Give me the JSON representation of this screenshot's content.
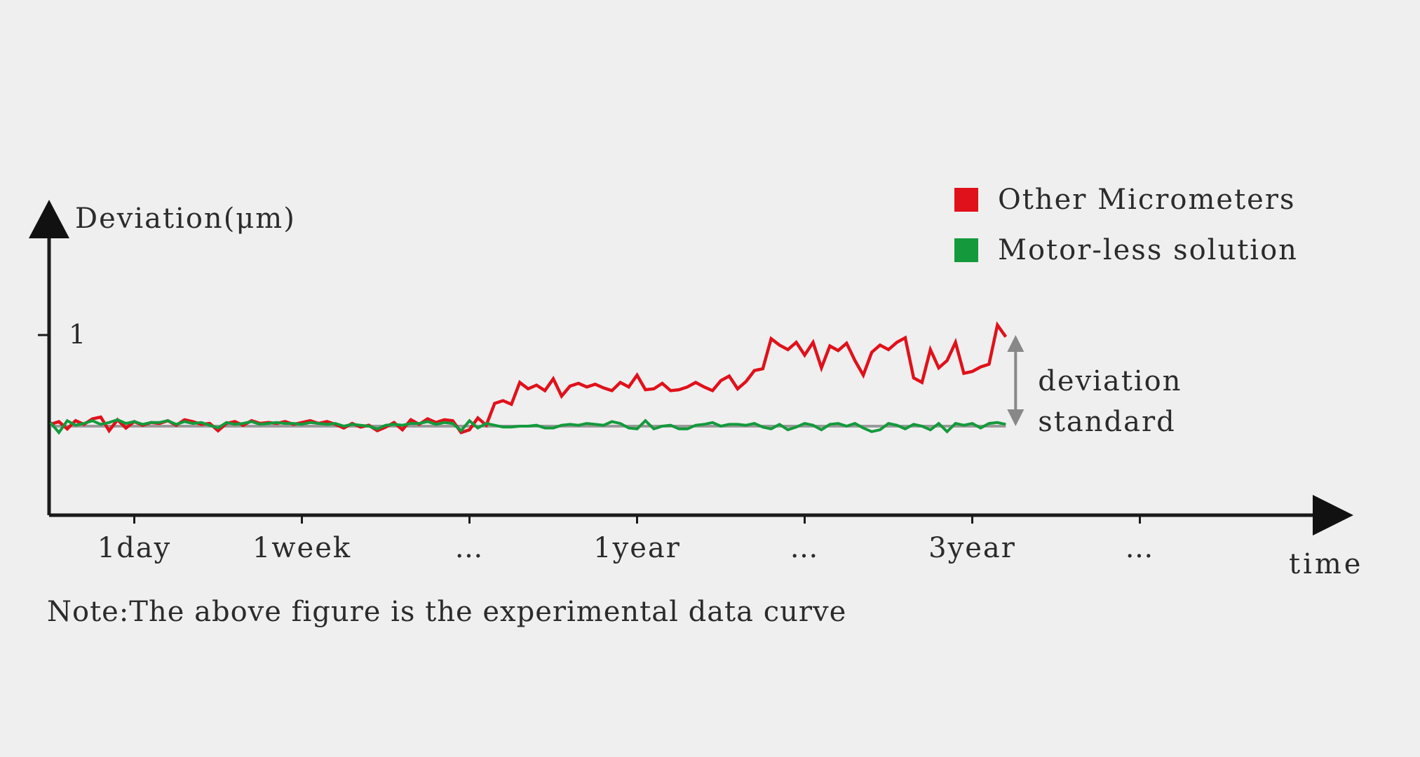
{
  "chart_data": {
    "type": "line",
    "title": "",
    "ylabel": "Deviation(μm)",
    "xlabel": "time",
    "x_ticks": [
      "1day",
      "1week",
      "…",
      "1year",
      "…",
      "3year",
      "…"
    ],
    "y_ticks": [
      {
        "value": 1,
        "label": "1"
      }
    ],
    "ylim": [
      -0.95,
      1.55
    ],
    "xlim": [
      0,
      7.7
    ],
    "grid": false,
    "legend": "top-right",
    "baseline": 0,
    "series": [
      {
        "name": "Other Micrometers",
        "color": "#e0111b",
        "x": [
          0.0,
          0.05,
          0.1,
          0.15,
          0.2,
          0.25,
          0.3,
          0.35,
          0.4,
          0.45,
          0.5,
          0.55,
          0.6,
          0.65,
          0.7,
          0.75,
          0.8,
          0.85,
          0.9,
          0.95,
          1.0,
          1.05,
          1.1,
          1.15,
          1.2,
          1.25,
          1.3,
          1.35,
          1.4,
          1.45,
          1.5,
          1.55,
          1.6,
          1.65,
          1.7,
          1.75,
          1.8,
          1.85,
          1.9,
          1.95,
          2.0,
          2.05,
          2.1,
          2.15,
          2.2,
          2.25,
          2.3,
          2.35,
          2.4,
          2.45,
          2.5,
          2.55,
          2.6,
          2.65,
          2.7,
          2.75,
          2.8,
          2.85,
          2.9,
          2.95,
          3.0,
          3.05,
          3.1,
          3.15,
          3.2,
          3.25,
          3.3,
          3.35,
          3.4,
          3.45,
          3.5,
          3.55,
          3.6,
          3.65,
          3.7,
          3.75,
          3.8,
          3.85,
          3.9,
          3.95,
          4.0,
          4.05,
          4.1,
          4.15,
          4.2,
          4.25,
          4.3,
          4.35,
          4.4,
          4.45,
          4.5,
          4.55,
          4.6,
          4.65,
          4.7,
          4.75,
          4.8,
          4.85,
          4.9,
          4.95,
          5.0,
          5.05,
          5.1,
          5.15,
          5.2,
          5.25,
          5.3,
          5.35,
          5.4,
          5.45,
          5.5,
          5.55,
          5.6,
          5.65,
          5.7
        ],
        "y": [
          0.02,
          0.05,
          -0.03,
          0.06,
          0.02,
          0.08,
          0.1,
          -0.05,
          0.07,
          -0.02,
          0.05,
          0.01,
          0.04,
          0.03,
          0.06,
          0.01,
          0.07,
          0.05,
          0.02,
          0.03,
          -0.05,
          0.03,
          0.05,
          0.01,
          0.06,
          0.03,
          0.04,
          0.03,
          0.05,
          0.02,
          0.04,
          0.06,
          0.03,
          0.05,
          0.02,
          -0.02,
          0.03,
          -0.01,
          0.01,
          -0.05,
          -0.01,
          0.04,
          -0.04,
          0.07,
          0.02,
          0.08,
          0.04,
          0.07,
          0.06,
          -0.07,
          -0.04,
          0.09,
          0.01,
          0.25,
          0.28,
          0.24,
          0.48,
          0.41,
          0.45,
          0.39,
          0.52,
          0.33,
          0.44,
          0.47,
          0.43,
          0.46,
          0.42,
          0.39,
          0.48,
          0.43,
          0.56,
          0.4,
          0.41,
          0.47,
          0.39,
          0.4,
          0.43,
          0.48,
          0.43,
          0.39,
          0.5,
          0.55,
          0.41,
          0.49,
          0.61,
          0.63,
          0.96,
          0.89,
          0.84,
          0.92,
          0.78,
          0.92,
          0.64,
          0.88,
          0.83,
          0.91,
          0.72,
          0.56,
          0.81,
          0.89,
          0.84,
          0.92,
          0.97,
          0.53,
          0.48,
          0.84,
          0.64,
          0.72,
          0.92,
          0.58,
          0.6,
          0.65,
          0.68,
          1.11,
          0.98
        ]
      },
      {
        "name": "Motor-less solution",
        "color": "#149a3c",
        "x": [
          0.0,
          0.05,
          0.1,
          0.15,
          0.2,
          0.25,
          0.3,
          0.35,
          0.4,
          0.45,
          0.5,
          0.55,
          0.6,
          0.65,
          0.7,
          0.75,
          0.8,
          0.85,
          0.9,
          0.95,
          1.0,
          1.05,
          1.1,
          1.15,
          1.2,
          1.25,
          1.3,
          1.35,
          1.4,
          1.45,
          1.5,
          1.55,
          1.6,
          1.65,
          1.7,
          1.75,
          1.8,
          1.85,
          1.9,
          1.95,
          2.0,
          2.05,
          2.1,
          2.15,
          2.2,
          2.25,
          2.3,
          2.35,
          2.4,
          2.45,
          2.5,
          2.55,
          2.6,
          2.65,
          2.7,
          2.75,
          2.8,
          2.85,
          2.9,
          2.95,
          3.0,
          3.05,
          3.1,
          3.15,
          3.2,
          3.25,
          3.3,
          3.35,
          3.4,
          3.45,
          3.5,
          3.55,
          3.6,
          3.65,
          3.7,
          3.75,
          3.8,
          3.85,
          3.9,
          3.95,
          4.0,
          4.05,
          4.1,
          4.15,
          4.2,
          4.25,
          4.3,
          4.35,
          4.4,
          4.45,
          4.5,
          4.55,
          4.6,
          4.65,
          4.7,
          4.75,
          4.8,
          4.85,
          4.9,
          4.95,
          5.0,
          5.05,
          5.1,
          5.15,
          5.2,
          5.25,
          5.3,
          5.35,
          5.4,
          5.45,
          5.5,
          5.55,
          5.6,
          5.65,
          5.7
        ],
        "y": [
          0.04,
          -0.07,
          0.06,
          0.01,
          0.03,
          0.06,
          0.02,
          0.04,
          0.07,
          0.03,
          0.05,
          0.02,
          0.04,
          0.04,
          0.06,
          0.02,
          0.05,
          0.03,
          0.04,
          0.01,
          -0.02,
          0.04,
          0.02,
          0.03,
          0.05,
          0.02,
          0.03,
          0.04,
          0.03,
          0.03,
          0.02,
          0.04,
          0.03,
          0.02,
          0.03,
          0.0,
          0.02,
          0.01,
          0.0,
          -0.03,
          0.01,
          0.02,
          0.01,
          0.03,
          0.03,
          0.05,
          0.02,
          0.04,
          0.03,
          -0.05,
          0.06,
          -0.02,
          0.03,
          0.01,
          -0.01,
          -0.01,
          0.0,
          0.0,
          0.01,
          -0.02,
          -0.02,
          0.01,
          0.02,
          0.01,
          0.03,
          0.02,
          0.01,
          0.05,
          0.03,
          -0.02,
          -0.03,
          0.06,
          -0.03,
          0.0,
          0.01,
          -0.03,
          -0.03,
          0.01,
          0.02,
          0.04,
          0.0,
          0.02,
          0.02,
          0.01,
          0.03,
          -0.01,
          -0.03,
          0.02,
          -0.04,
          -0.01,
          0.03,
          0.01,
          -0.04,
          0.02,
          0.03,
          0.0,
          0.03,
          -0.02,
          -0.06,
          -0.04,
          0.03,
          0.01,
          -0.03,
          0.02,
          0.0,
          -0.04,
          0.03,
          -0.06,
          0.03,
          0.01,
          0.03,
          -0.02,
          0.03,
          0.04,
          0.02
        ]
      }
    ],
    "annotation": {
      "lines": [
        "deviation",
        "standard"
      ],
      "x": 5.7,
      "y_from": 0,
      "y_to": 1.0,
      "color": "#888888"
    },
    "note": "Note:The above figure is the experimental data curve"
  }
}
